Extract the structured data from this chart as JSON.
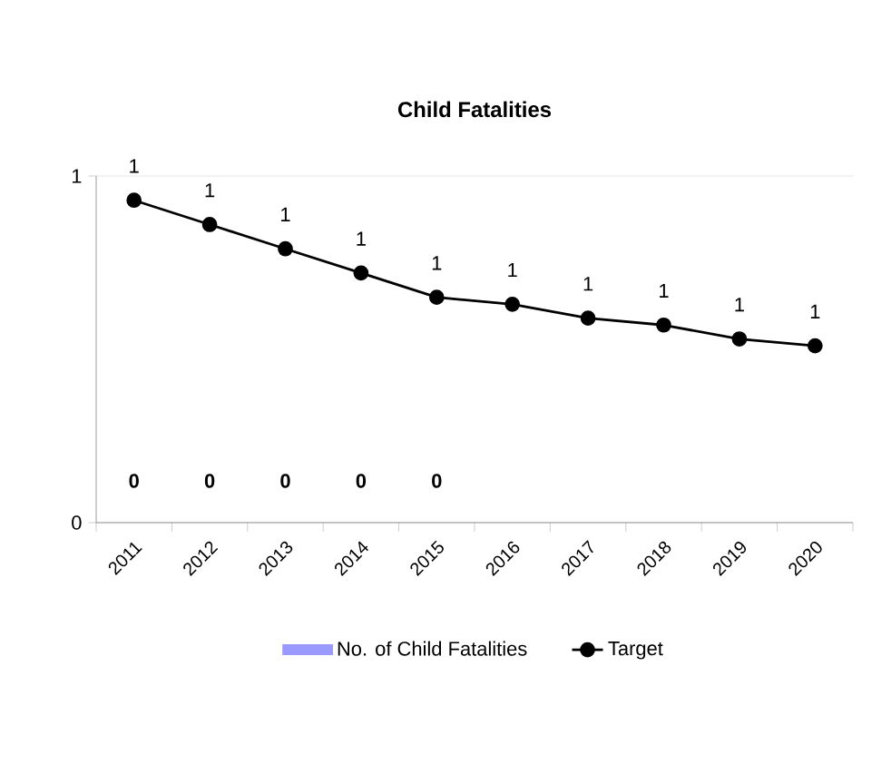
{
  "chart_data": {
    "type": "bar",
    "title": "Child Fatalities",
    "categories": [
      "2011",
      "2012",
      "2013",
      "2014",
      "2015",
      "2016",
      "2017",
      "2018",
      "2019",
      "2020"
    ],
    "series": [
      {
        "name": "No. of Child Fatalities",
        "color": "#9999ff",
        "values": [
          0,
          0,
          0,
          0,
          0,
          null,
          null,
          null,
          null,
          null
        ],
        "value_labels": [
          "**0**",
          "**0**",
          "**0**",
          "**0**",
          "**0**",
          null,
          null,
          null,
          null,
          null
        ]
      },
      {
        "name": "Target",
        "type": "line",
        "color": "#000000",
        "marker": "circle",
        "line_style": "solid",
        "values": [
          0.93,
          0.86,
          0.79,
          0.72,
          0.65,
          0.63,
          0.59,
          0.57,
          0.53,
          0.51
        ],
        "value_labels": [
          "1",
          "1",
          "1",
          "1",
          "1",
          "1",
          "1",
          "1",
          "1",
          "1"
        ]
      }
    ],
    "ylim": [
      0,
      1
    ],
    "yticks": [
      0,
      1
    ],
    "grid": "y",
    "legend": "bottom"
  }
}
